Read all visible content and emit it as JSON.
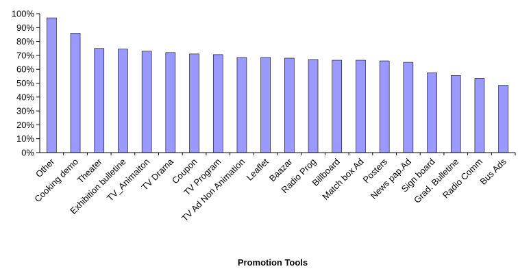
{
  "chart_data": {
    "type": "bar",
    "xlabel": "Promotion Tools",
    "ylabel": "",
    "ylim": [
      0,
      100
    ],
    "ytick_step": 10,
    "ytick_suffix": "%",
    "grid": false,
    "legend": "none",
    "colors": {
      "bar": "#9999ff",
      "bar_edge": "#000000",
      "axis": "#000000",
      "background": "#ffffff"
    },
    "categories": [
      "Other",
      "Cooking demo",
      "Theater",
      "Exhibition bulletine",
      "TV_Animaiton",
      "TV Drama",
      "Coupon",
      "TV Program",
      "TV Ad Non Animation",
      "Leaflet",
      "Baazar",
      "Radio Prog",
      "Billboard",
      "Match box Ad",
      "Posters",
      "News pap.Ad",
      "Sign board",
      "Grad. Bulletine",
      "Radio Comm",
      "Bus Ads"
    ],
    "values": [
      97,
      86,
      75,
      74.5,
      73,
      72,
      71,
      70.5,
      68.5,
      68.5,
      68,
      67,
      66.5,
      66.5,
      66,
      65,
      57.5,
      55.5,
      53.5,
      48.5
    ]
  }
}
